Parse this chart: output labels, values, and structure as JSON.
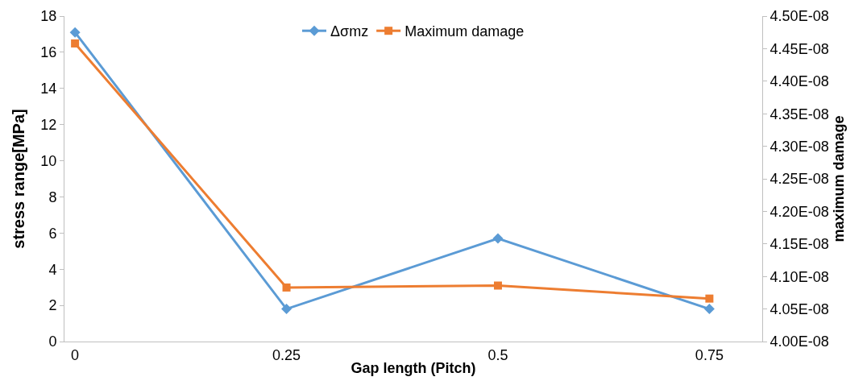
{
  "chart_data": {
    "type": "line",
    "xlabel": "Gap length (Pitch)",
    "ylabel": "stress range[MPa]",
    "y2label": "maximum damage",
    "categories": [
      "0",
      "0.25",
      "0.5",
      "0.75"
    ],
    "series": [
      {
        "name": "Δσmz",
        "color": "#5b9bd5",
        "marker": "diamond",
        "values": [
          17.1,
          1.8,
          5.7,
          1.8
        ]
      },
      {
        "name": "Maximum damage",
        "color": "#ed7d31",
        "marker": "square",
        "axis": "y2",
        "values": [
          4.458e-08,
          4.083e-08,
          4.086e-08,
          4.066e-08
        ]
      }
    ],
    "ylim": [
      0,
      18
    ],
    "yticks": [
      0,
      2,
      4,
      6,
      8,
      10,
      12,
      14,
      16,
      18
    ],
    "y2lim": [
      4e-08,
      4.5e-08
    ],
    "y2ticks": [
      {
        "value": 4e-08,
        "label": "4.00E-08"
      },
      {
        "value": 4.05e-08,
        "label": "4.05E-08"
      },
      {
        "value": 4.1e-08,
        "label": "4.10E-08"
      },
      {
        "value": 4.15e-08,
        "label": "4.15E-08"
      },
      {
        "value": 4.2e-08,
        "label": "4.20E-08"
      },
      {
        "value": 4.25e-08,
        "label": "4.25E-08"
      },
      {
        "value": 4.3e-08,
        "label": "4.30E-08"
      },
      {
        "value": 4.35e-08,
        "label": "4.35E-08"
      },
      {
        "value": 4.4e-08,
        "label": "4.40E-08"
      },
      {
        "value": 4.45e-08,
        "label": "4.45E-08"
      },
      {
        "value": 4.5e-08,
        "label": "4.50E-08"
      }
    ],
    "grid": false,
    "legend": "top",
    "line_style": "solid"
  }
}
